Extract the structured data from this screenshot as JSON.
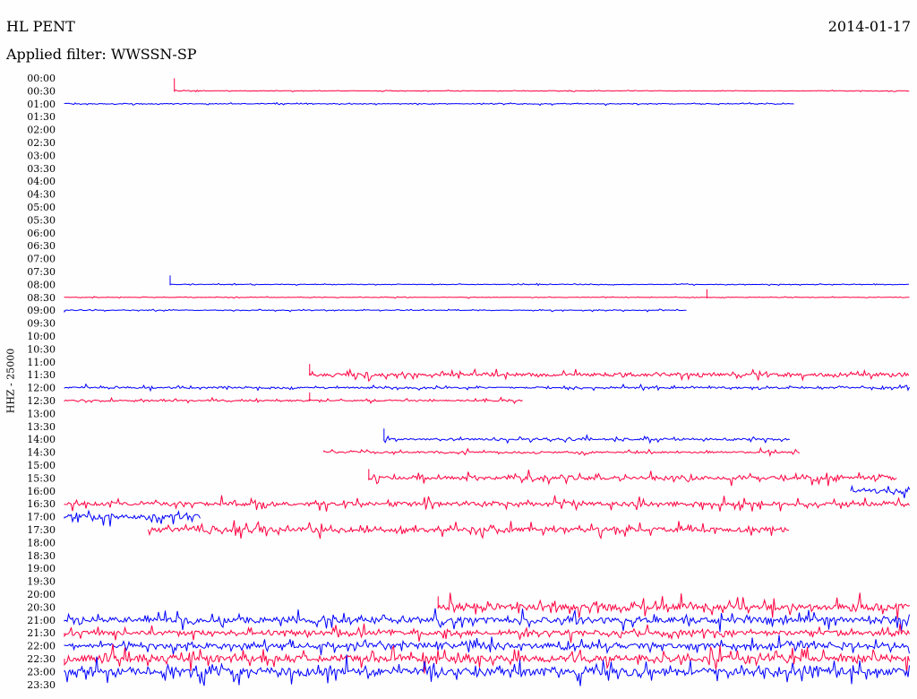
{
  "header": {
    "station": "HL PENT",
    "date": "2014-01-17",
    "filter": "Applied filter: WWSSN-SP"
  },
  "chart_data": {
    "type": "line",
    "title": "HL PENT",
    "date": "2014-01-17",
    "filter": "WWSSN-SP",
    "ylabel": "HHZ - 25000",
    "row_labels": [
      "00:00",
      "00:30",
      "01:00",
      "01:30",
      "02:00",
      "02:30",
      "03:00",
      "03:30",
      "04:00",
      "04:30",
      "05:00",
      "05:30",
      "06:00",
      "06:30",
      "07:00",
      "07:30",
      "08:00",
      "08:30",
      "09:00",
      "09:30",
      "10:00",
      "10:30",
      "11:00",
      "11:30",
      "12:00",
      "12:30",
      "13:00",
      "13:30",
      "14:00",
      "14:30",
      "15:00",
      "15:30",
      "16:00",
      "16:30",
      "17:00",
      "17:30",
      "18:00",
      "18:30",
      "19:00",
      "19:30",
      "20:00",
      "20:30",
      "21:00",
      "21:30",
      "22:00",
      "22:30",
      "23:00",
      "23:30"
    ],
    "colors": {
      "odd_rows": "#ff0040",
      "even_rows": "#0000ff"
    },
    "traces": [
      {
        "row": 1,
        "start": 0.13,
        "end": 1.0,
        "amp": 0.4,
        "spikes": [
          {
            "pos": 0.13,
            "h": 14
          }
        ]
      },
      {
        "row": 2,
        "start": 0.0,
        "end": 0.863,
        "amp": 0.7
      },
      {
        "row": 16,
        "start": 0.125,
        "end": 1.0,
        "amp": 0.5,
        "spikes": [
          {
            "pos": 0.125,
            "h": 10
          }
        ]
      },
      {
        "row": 17,
        "start": 0.0,
        "end": 1.0,
        "amp": 0.4,
        "spikes": [
          {
            "pos": 0.76,
            "h": 9
          }
        ]
      },
      {
        "row": 18,
        "start": 0.0,
        "end": 0.736,
        "amp": 0.6
      },
      {
        "row": 23,
        "start": 0.29,
        "end": 1.0,
        "amp": 3,
        "spikes": [
          {
            "pos": 0.29,
            "h": 12
          }
        ]
      },
      {
        "row": 24,
        "start": 0.0,
        "end": 1.0,
        "amp": 1.4
      },
      {
        "row": 25,
        "start": 0.0,
        "end": 0.542,
        "amp": 1.2,
        "spikes": [
          {
            "pos": 0.29,
            "h": 9
          }
        ]
      },
      {
        "row": 28,
        "start": 0.378,
        "end": 0.858,
        "amp": 1.8,
        "spikes": [
          {
            "pos": 0.378,
            "h": 12
          }
        ]
      },
      {
        "row": 29,
        "start": 0.307,
        "end": 0.87,
        "amp": 1.6
      },
      {
        "row": 31,
        "start": 0.36,
        "end": 0.985,
        "amp": 3.5,
        "spikes": [
          {
            "pos": 0.36,
            "h": 10
          }
        ]
      },
      {
        "row": 32,
        "start": 0.93,
        "end": 1.0,
        "amp": 4
      },
      {
        "row": 33,
        "start": 0.0,
        "end": 1.0,
        "amp": 3.5
      },
      {
        "row": 34,
        "start": 0.0,
        "end": 0.162,
        "amp": 4.5
      },
      {
        "row": 35,
        "start": 0.099,
        "end": 0.857,
        "amp": 4.5
      },
      {
        "row": 41,
        "start": 0.442,
        "end": 1.0,
        "amp": 6,
        "spikes": [
          {
            "pos": 0.442,
            "h": 12
          }
        ]
      },
      {
        "row": 42,
        "start": 0.0,
        "end": 1.0,
        "amp": 5
      },
      {
        "row": 43,
        "start": 0.0,
        "end": 1.0,
        "amp": 4
      },
      {
        "row": 44,
        "start": 0.0,
        "end": 1.0,
        "amp": 4.5
      },
      {
        "row": 45,
        "start": 0.0,
        "end": 1.0,
        "amp": 6
      },
      {
        "row": 46,
        "start": 0.0,
        "end": 1.0,
        "amp": 7
      }
    ]
  }
}
